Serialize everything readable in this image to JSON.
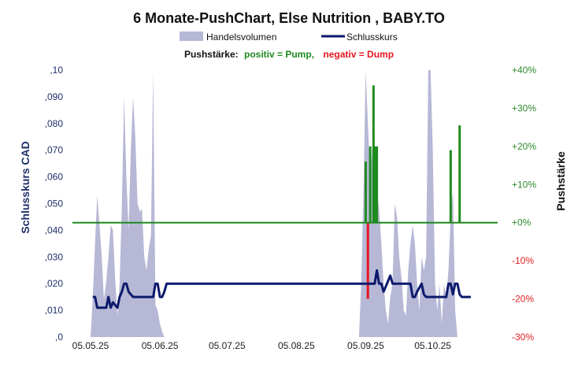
{
  "chart_data": {
    "type": "line",
    "title": "6 Monate-PushChart,  Else Nutrition , BABY.TO",
    "legend": {
      "volume_label": "Handelsvolumen",
      "close_label": "Schlusskurs",
      "placement": "top-center"
    },
    "push_legend": {
      "prefix": "Pushstärke:",
      "positive": "positiv = Pump,",
      "negative": "negativ = Dump"
    },
    "ylabel_left": "Schlusskurs CAD",
    "ylabel_right": "Pushstärke",
    "ylim_left": [
      0,
      0.1
    ],
    "ylim_right": [
      -30,
      40
    ],
    "left_ticks": [
      ",0",
      ",010",
      ",020",
      ",030",
      ",040",
      ",050",
      ",060",
      ",070",
      ",080",
      ",090",
      ",10"
    ],
    "right_ticks": [
      "-30%",
      "-20%",
      "-10%",
      "+0%",
      "+10%",
      "+20%",
      "+30%",
      "+40%"
    ],
    "x_ticks": [
      "05.05.25",
      "05.06.25",
      "05.07.25",
      "05.08.25",
      "05.09.25",
      "05.10.25"
    ],
    "x_tick_days": [
      0,
      31,
      61,
      92,
      123,
      153
    ],
    "x_range_days": [
      0,
      182
    ],
    "colors": {
      "volume": "#b7b8d6",
      "close": "#0d1a6b",
      "pump": "#1f8a1f",
      "dump": "#e8141e",
      "zero_line": "#1f8a1f",
      "left_axis": "#1f2f6a",
      "right_axis_pos": "#2e8b2e",
      "right_axis_neg": "#e02020"
    },
    "close_series": [
      [
        1,
        0.015
      ],
      [
        2,
        0.015
      ],
      [
        3,
        0.011
      ],
      [
        4,
        0.011
      ],
      [
        5,
        0.011
      ],
      [
        7,
        0.011
      ],
      [
        8,
        0.015
      ],
      [
        9,
        0.011
      ],
      [
        10,
        0.013
      ],
      [
        11,
        0.012
      ],
      [
        12,
        0.011
      ],
      [
        13,
        0.015
      ],
      [
        14,
        0.017
      ],
      [
        15,
        0.02
      ],
      [
        16,
        0.02
      ],
      [
        17,
        0.017
      ],
      [
        18,
        0.016
      ],
      [
        19,
        0.015
      ],
      [
        20,
        0.015
      ],
      [
        25,
        0.015
      ],
      [
        28,
        0.015
      ],
      [
        29,
        0.02
      ],
      [
        30,
        0.02
      ],
      [
        31,
        0.015
      ],
      [
        32,
        0.015
      ],
      [
        33,
        0.017
      ],
      [
        34,
        0.02
      ],
      [
        60,
        0.02
      ],
      [
        90,
        0.02
      ],
      [
        120,
        0.02
      ],
      [
        127,
        0.02
      ],
      [
        128,
        0.025
      ],
      [
        129,
        0.02
      ],
      [
        130,
        0.02
      ],
      [
        131,
        0.017
      ],
      [
        132,
        0.019
      ],
      [
        134,
        0.023
      ],
      [
        135,
        0.02
      ],
      [
        143,
        0.02
      ],
      [
        144,
        0.015
      ],
      [
        145,
        0.015
      ],
      [
        146,
        0.017
      ],
      [
        148,
        0.02
      ],
      [
        149,
        0.016
      ],
      [
        150,
        0.015
      ],
      [
        151,
        0.015
      ],
      [
        159,
        0.015
      ],
      [
        160,
        0.02
      ],
      [
        161,
        0.02
      ],
      [
        162,
        0.016
      ],
      [
        163,
        0.02
      ],
      [
        164,
        0.02
      ],
      [
        165,
        0.016
      ],
      [
        166,
        0.015
      ],
      [
        170,
        0.015
      ]
    ],
    "volume_series": [
      [
        0,
        0.0
      ],
      [
        1,
        0.015
      ],
      [
        2,
        0.035
      ],
      [
        3,
        0.053
      ],
      [
        4,
        0.042
      ],
      [
        5,
        0.03
      ],
      [
        6,
        0.014
      ],
      [
        7,
        0.021
      ],
      [
        8,
        0.03
      ],
      [
        9,
        0.042
      ],
      [
        10,
        0.04
      ],
      [
        11,
        0.022
      ],
      [
        12,
        0.008
      ],
      [
        13,
        0.02
      ],
      [
        14,
        0.05
      ],
      [
        15,
        0.09
      ],
      [
        16,
        0.06
      ],
      [
        17,
        0.04
      ],
      [
        18,
        0.07
      ],
      [
        19,
        0.09
      ],
      [
        20,
        0.075
      ],
      [
        21,
        0.05
      ],
      [
        22,
        0.047
      ],
      [
        23,
        0.048
      ],
      [
        24,
        0.03
      ],
      [
        25,
        0.025
      ],
      [
        26,
        0.033
      ],
      [
        27,
        0.038
      ],
      [
        28,
        0.1
      ],
      [
        29,
        0.012
      ],
      [
        30,
        0.01
      ],
      [
        31,
        0.005
      ],
      [
        32,
        0.002
      ],
      [
        33,
        0.0
      ],
      [
        120,
        0.0
      ],
      [
        121,
        0.02
      ],
      [
        122,
        0.055
      ],
      [
        123,
        0.1
      ],
      [
        124,
        0.08
      ],
      [
        125,
        0.06
      ],
      [
        126,
        0.07
      ],
      [
        127,
        0.072
      ],
      [
        128,
        0.055
      ],
      [
        129,
        0.048
      ],
      [
        130,
        0.035
      ],
      [
        131,
        0.02
      ],
      [
        132,
        0.01
      ],
      [
        133,
        0.005
      ],
      [
        134,
        0.015
      ],
      [
        135,
        0.02
      ],
      [
        136,
        0.05
      ],
      [
        137,
        0.045
      ],
      [
        138,
        0.03
      ],
      [
        139,
        0.022
      ],
      [
        140,
        0.01
      ],
      [
        141,
        0.008
      ],
      [
        142,
        0.025
      ],
      [
        143,
        0.035
      ],
      [
        144,
        0.042
      ],
      [
        145,
        0.035
      ],
      [
        146,
        0.02
      ],
      [
        147,
        0.01
      ],
      [
        148,
        0.03
      ],
      [
        149,
        0.025
      ],
      [
        150,
        0.03
      ],
      [
        151,
        0.1
      ],
      [
        152,
        0.1
      ],
      [
        153,
        0.07
      ],
      [
        154,
        0.02
      ],
      [
        155,
        0.01
      ],
      [
        156,
        0.02
      ],
      [
        157,
        0.005
      ],
      [
        158,
        0.02
      ],
      [
        159,
        0.015
      ],
      [
        160,
        0.025
      ],
      [
        161,
        0.045
      ],
      [
        162,
        0.055
      ],
      [
        163,
        0.01
      ],
      [
        164,
        0.0
      ],
      [
        166,
        0.0
      ]
    ],
    "push_bars": [
      {
        "x": 123,
        "value": 16
      },
      {
        "x": 125,
        "value": 20
      },
      {
        "x": 126.5,
        "value": 36
      },
      {
        "x": 127.2,
        "value": 20
      },
      {
        "x": 128,
        "value": 20
      },
      {
        "x": 161,
        "value": 19
      },
      {
        "x": 165,
        "value": 25.5
      },
      {
        "x": 124,
        "value": -20
      }
    ]
  }
}
